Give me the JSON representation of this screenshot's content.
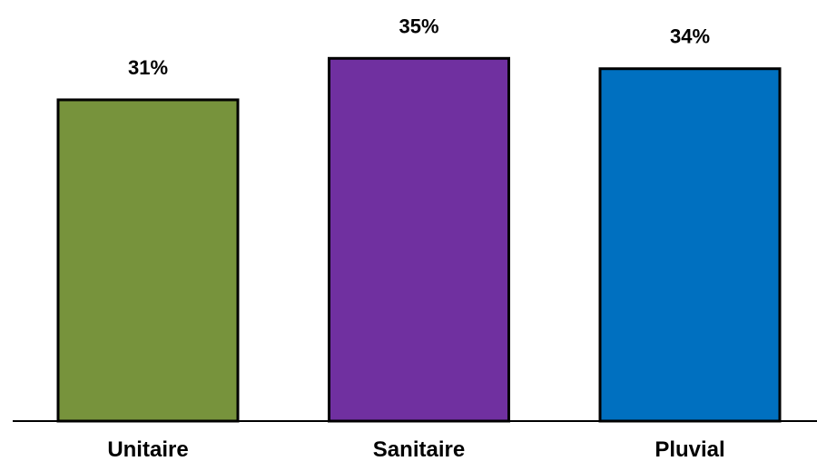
{
  "chart_data": {
    "type": "bar",
    "categories": [
      "Unitaire",
      "Sanitaire",
      "Pluvial"
    ],
    "values": [
      31,
      35,
      34
    ],
    "value_labels": [
      "31%",
      "35%",
      "34%"
    ],
    "colors": [
      "#77933C",
      "#7030A0",
      "#0070C0"
    ],
    "bar_outline_color": "#000000",
    "baseline_color": "#000000",
    "ylim": [
      0,
      40
    ],
    "grid": false,
    "legend": "none",
    "title": "",
    "xlabel": "",
    "ylabel": ""
  }
}
